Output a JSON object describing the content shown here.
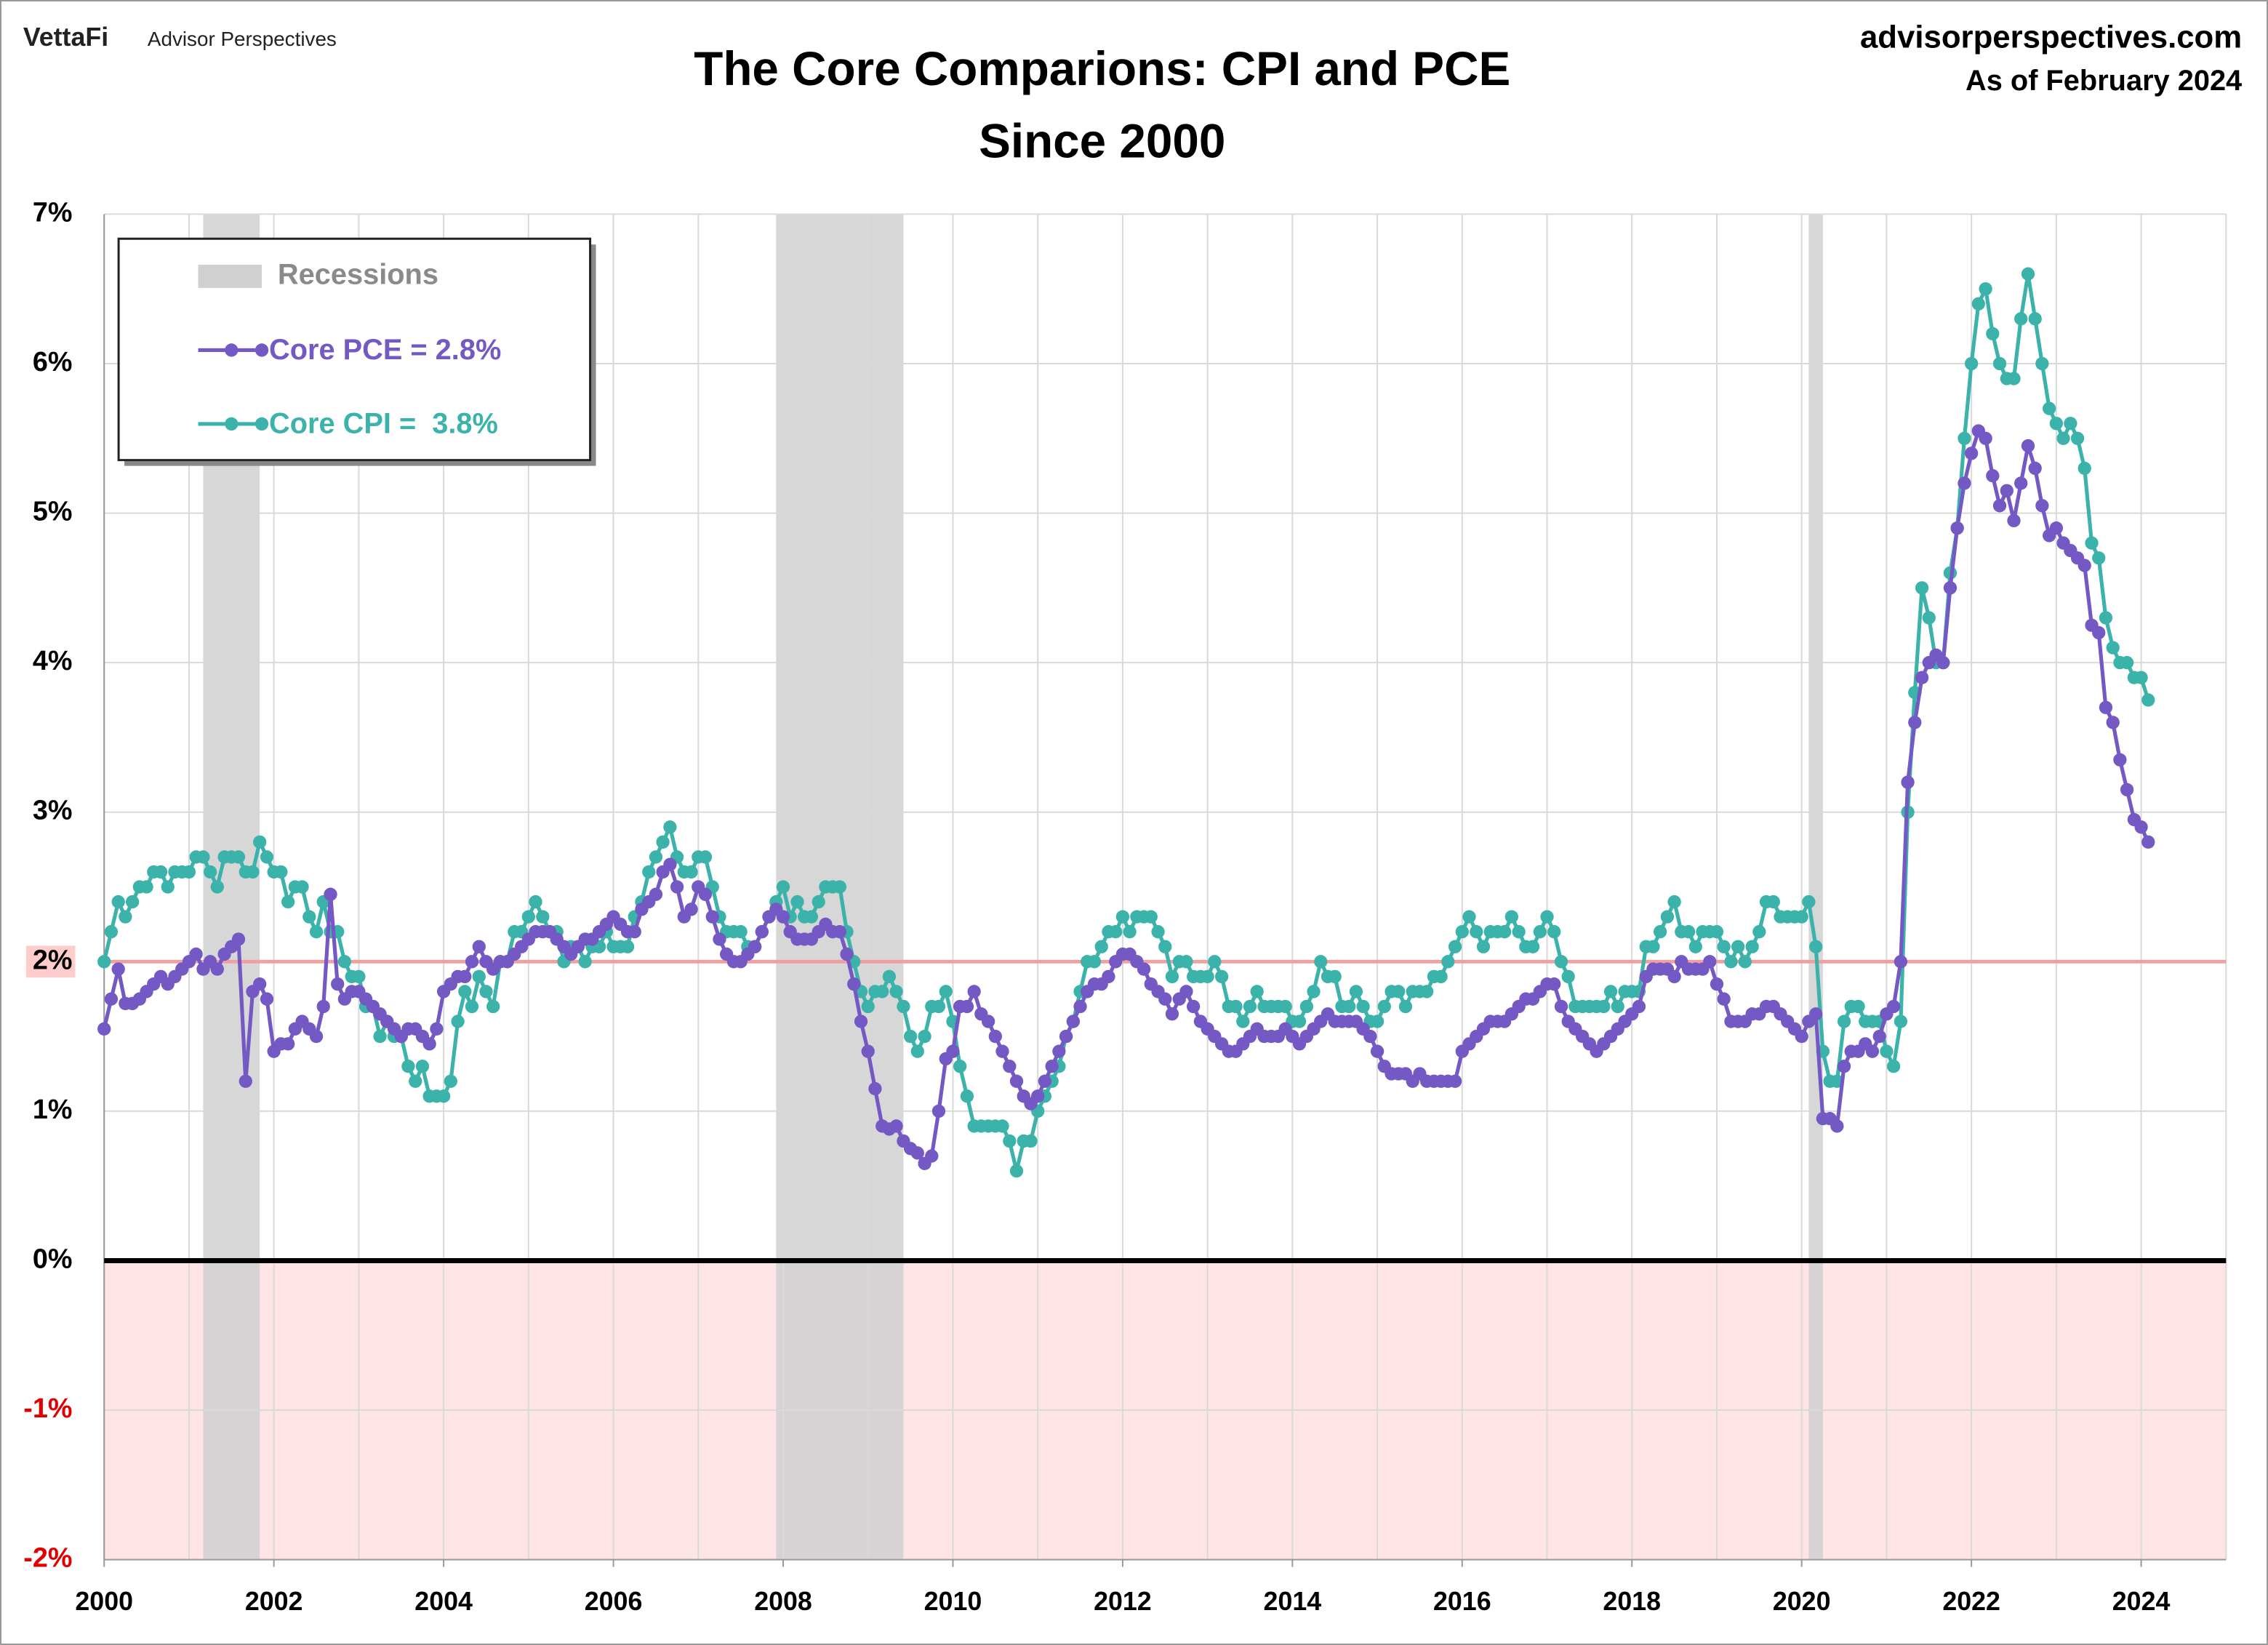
{
  "chart_data": {
    "type": "line",
    "brand": "VettaFi",
    "brand_sub": "Advisor Perspectives",
    "title": "The Core Comparions: CPI and PCE",
    "subtitle": "Since 2000",
    "source": "advisorperspectives.com",
    "date_note": "As of February 2024",
    "xlim": [
      2000,
      2025
    ],
    "xticks": [
      2000,
      2002,
      2004,
      2006,
      2008,
      2010,
      2012,
      2014,
      2016,
      2018,
      2020,
      2022,
      2024
    ],
    "xgrid": [
      2000,
      2001,
      2002,
      2003,
      2004,
      2005,
      2006,
      2007,
      2008,
      2009,
      2010,
      2011,
      2012,
      2013,
      2014,
      2015,
      2016,
      2017,
      2018,
      2019,
      2020,
      2021,
      2022,
      2023,
      2024,
      2025
    ],
    "ylim": [
      -2,
      7
    ],
    "yticks": [
      {
        "value": -2,
        "label": "-2%"
      },
      {
        "value": -1,
        "label": "-1%"
      },
      {
        "value": 0,
        "label": "0%"
      },
      {
        "value": 1,
        "label": "1%"
      },
      {
        "value": 2,
        "label": "2%"
      },
      {
        "value": 3,
        "label": "3%"
      },
      {
        "value": 4,
        "label": "4%"
      },
      {
        "value": 5,
        "label": "5%"
      },
      {
        "value": 6,
        "label": "6%"
      },
      {
        "value": 7,
        "label": "7%"
      }
    ],
    "grid": true,
    "negative_label_color": "#e00000",
    "negative_shading": "#ffe4e6",
    "target_line": {
      "value": 2,
      "color": "#f0a0a0"
    },
    "recessions": {
      "name": "Recessions",
      "color": "#d0d0d0",
      "ranges": [
        [
          2001.167,
          2001.833
        ],
        [
          2007.917,
          2009.417
        ],
        [
          2020.083,
          2020.25
        ]
      ]
    },
    "legend": "upper left",
    "x": [
      2000.0,
      2000.083,
      2000.167,
      2000.25,
      2000.333,
      2000.417,
      2000.5,
      2000.583,
      2000.667,
      2000.75,
      2000.833,
      2000.917,
      2001.0,
      2001.083,
      2001.167,
      2001.25,
      2001.333,
      2001.417,
      2001.5,
      2001.583,
      2001.667,
      2001.75,
      2001.833,
      2001.917,
      2002.0,
      2002.083,
      2002.167,
      2002.25,
      2002.333,
      2002.417,
      2002.5,
      2002.583,
      2002.667,
      2002.75,
      2002.833,
      2002.917,
      2003.0,
      2003.083,
      2003.167,
      2003.25,
      2003.333,
      2003.417,
      2003.5,
      2003.583,
      2003.667,
      2003.75,
      2003.833,
      2003.917,
      2004.0,
      2004.083,
      2004.167,
      2004.25,
      2004.333,
      2004.417,
      2004.5,
      2004.583,
      2004.667,
      2004.75,
      2004.833,
      2004.917,
      2005.0,
      2005.083,
      2005.167,
      2005.25,
      2005.333,
      2005.417,
      2005.5,
      2005.583,
      2005.667,
      2005.75,
      2005.833,
      2005.917,
      2006.0,
      2006.083,
      2006.167,
      2006.25,
      2006.333,
      2006.417,
      2006.5,
      2006.583,
      2006.667,
      2006.75,
      2006.833,
      2006.917,
      2007.0,
      2007.083,
      2007.167,
      2007.25,
      2007.333,
      2007.417,
      2007.5,
      2007.583,
      2007.667,
      2007.75,
      2007.833,
      2007.917,
      2008.0,
      2008.083,
      2008.167,
      2008.25,
      2008.333,
      2008.417,
      2008.5,
      2008.583,
      2008.667,
      2008.75,
      2008.833,
      2008.917,
      2009.0,
      2009.083,
      2009.167,
      2009.25,
      2009.333,
      2009.417,
      2009.5,
      2009.583,
      2009.667,
      2009.75,
      2009.833,
      2009.917,
      2010.0,
      2010.083,
      2010.167,
      2010.25,
      2010.333,
      2010.417,
      2010.5,
      2010.583,
      2010.667,
      2010.75,
      2010.833,
      2010.917,
      2011.0,
      2011.083,
      2011.167,
      2011.25,
      2011.333,
      2011.417,
      2011.5,
      2011.583,
      2011.667,
      2011.75,
      2011.833,
      2011.917,
      2012.0,
      2012.083,
      2012.167,
      2012.25,
      2012.333,
      2012.417,
      2012.5,
      2012.583,
      2012.667,
      2012.75,
      2012.833,
      2012.917,
      2013.0,
      2013.083,
      2013.167,
      2013.25,
      2013.333,
      2013.417,
      2013.5,
      2013.583,
      2013.667,
      2013.75,
      2013.833,
      2013.917,
      2014.0,
      2014.083,
      2014.167,
      2014.25,
      2014.333,
      2014.417,
      2014.5,
      2014.583,
      2014.667,
      2014.75,
      2014.833,
      2014.917,
      2015.0,
      2015.083,
      2015.167,
      2015.25,
      2015.333,
      2015.417,
      2015.5,
      2015.583,
      2015.667,
      2015.75,
      2015.833,
      2015.917,
      2016.0,
      2016.083,
      2016.167,
      2016.25,
      2016.333,
      2016.417,
      2016.5,
      2016.583,
      2016.667,
      2016.75,
      2016.833,
      2016.917,
      2017.0,
      2017.083,
      2017.167,
      2017.25,
      2017.333,
      2017.417,
      2017.5,
      2017.583,
      2017.667,
      2017.75,
      2017.833,
      2017.917,
      2018.0,
      2018.083,
      2018.167,
      2018.25,
      2018.333,
      2018.417,
      2018.5,
      2018.583,
      2018.667,
      2018.75,
      2018.833,
      2018.917,
      2019.0,
      2019.083,
      2019.167,
      2019.25,
      2019.333,
      2019.417,
      2019.5,
      2019.583,
      2019.667,
      2019.75,
      2019.833,
      2019.917,
      2020.0,
      2020.083,
      2020.167,
      2020.25,
      2020.333,
      2020.417,
      2020.5,
      2020.583,
      2020.667,
      2020.75,
      2020.833,
      2020.917,
      2021.0,
      2021.083,
      2021.167,
      2021.25,
      2021.333,
      2021.417,
      2021.5,
      2021.583,
      2021.667,
      2021.75,
      2021.833,
      2021.917,
      2022.0,
      2022.083,
      2022.167,
      2022.25,
      2022.333,
      2022.417,
      2022.5,
      2022.583,
      2022.667,
      2022.75,
      2022.833,
      2022.917,
      2023.0,
      2023.083,
      2023.167,
      2023.25,
      2023.333,
      2023.417,
      2023.5,
      2023.583,
      2023.667,
      2023.75,
      2023.833,
      2023.917,
      2024.0,
      2024.083
    ],
    "series": [
      {
        "name": "Core CPI =  3.8%",
        "color": "#3bb3aa",
        "values": [
          2.0,
          2.2,
          2.4,
          2.3,
          2.4,
          2.5,
          2.5,
          2.6,
          2.6,
          2.5,
          2.6,
          2.6,
          2.6,
          2.7,
          2.7,
          2.6,
          2.5,
          2.7,
          2.7,
          2.7,
          2.6,
          2.6,
          2.8,
          2.7,
          2.6,
          2.6,
          2.4,
          2.5,
          2.5,
          2.3,
          2.2,
          2.4,
          2.2,
          2.2,
          2.0,
          1.9,
          1.9,
          1.7,
          1.7,
          1.5,
          1.6,
          1.5,
          1.5,
          1.3,
          1.2,
          1.3,
          1.1,
          1.1,
          1.1,
          1.2,
          1.6,
          1.8,
          1.7,
          1.9,
          1.8,
          1.7,
          2.0,
          2.0,
          2.2,
          2.2,
          2.3,
          2.4,
          2.3,
          2.2,
          2.2,
          2.0,
          2.1,
          2.1,
          2.0,
          2.1,
          2.1,
          2.2,
          2.1,
          2.1,
          2.1,
          2.3,
          2.4,
          2.6,
          2.7,
          2.8,
          2.9,
          2.7,
          2.6,
          2.6,
          2.7,
          2.7,
          2.5,
          2.3,
          2.2,
          2.2,
          2.2,
          2.1,
          2.1,
          2.2,
          2.3,
          2.4,
          2.5,
          2.3,
          2.4,
          2.3,
          2.3,
          2.4,
          2.5,
          2.5,
          2.5,
          2.2,
          2.0,
          1.8,
          1.7,
          1.8,
          1.8,
          1.9,
          1.8,
          1.7,
          1.5,
          1.4,
          1.5,
          1.7,
          1.7,
          1.8,
          1.6,
          1.3,
          1.1,
          0.9,
          0.9,
          0.9,
          0.9,
          0.9,
          0.8,
          0.6,
          0.8,
          0.8,
          1.0,
          1.1,
          1.2,
          1.3,
          1.5,
          1.6,
          1.8,
          2.0,
          2.0,
          2.1,
          2.2,
          2.2,
          2.3,
          2.2,
          2.3,
          2.3,
          2.3,
          2.2,
          2.1,
          1.9,
          2.0,
          2.0,
          1.9,
          1.9,
          1.9,
          2.0,
          1.9,
          1.7,
          1.7,
          1.6,
          1.7,
          1.8,
          1.7,
          1.7,
          1.7,
          1.7,
          1.6,
          1.6,
          1.7,
          1.8,
          2.0,
          1.9,
          1.9,
          1.7,
          1.7,
          1.8,
          1.7,
          1.6,
          1.6,
          1.7,
          1.8,
          1.8,
          1.7,
          1.8,
          1.8,
          1.8,
          1.9,
          1.9,
          2.0,
          2.1,
          2.2,
          2.3,
          2.2,
          2.1,
          2.2,
          2.2,
          2.2,
          2.3,
          2.2,
          2.1,
          2.1,
          2.2,
          2.3,
          2.2,
          2.0,
          1.9,
          1.7,
          1.7,
          1.7,
          1.7,
          1.7,
          1.8,
          1.7,
          1.8,
          1.8,
          1.8,
          2.1,
          2.1,
          2.2,
          2.3,
          2.4,
          2.2,
          2.2,
          2.1,
          2.2,
          2.2,
          2.2,
          2.1,
          2.0,
          2.1,
          2.0,
          2.1,
          2.2,
          2.4,
          2.4,
          2.3,
          2.3,
          2.3,
          2.3,
          2.4,
          2.1,
          1.4,
          1.2,
          1.2,
          1.6,
          1.7,
          1.7,
          1.6,
          1.6,
          1.6,
          1.4,
          1.3,
          1.6,
          3.0,
          3.8,
          4.5,
          4.3,
          4.0,
          4.0,
          4.6,
          4.9,
          5.5,
          6.0,
          6.4,
          6.5,
          6.2,
          6.0,
          5.9,
          5.9,
          6.3,
          6.6,
          6.3,
          6.0,
          5.7,
          5.6,
          5.5,
          5.6,
          5.5,
          5.3,
          4.8,
          4.7,
          4.3,
          4.1,
          4.0,
          4.0,
          3.9,
          3.9,
          3.75
        ]
      },
      {
        "name": "Core PCE = 2.8%",
        "color": "#7458c4",
        "values": [
          1.55,
          1.75,
          1.95,
          1.72,
          1.72,
          1.75,
          1.8,
          1.85,
          1.9,
          1.85,
          1.9,
          1.95,
          2.0,
          2.05,
          1.95,
          2.0,
          1.95,
          2.05,
          2.1,
          2.15,
          1.2,
          1.8,
          1.85,
          1.75,
          1.4,
          1.45,
          1.45,
          1.55,
          1.6,
          1.55,
          1.5,
          1.7,
          2.45,
          1.85,
          1.75,
          1.8,
          1.8,
          1.75,
          1.7,
          1.65,
          1.6,
          1.55,
          1.5,
          1.55,
          1.55,
          1.5,
          1.45,
          1.55,
          1.8,
          1.85,
          1.9,
          1.9,
          2.0,
          2.1,
          2.0,
          1.95,
          2.0,
          2.0,
          2.05,
          2.1,
          2.15,
          2.2,
          2.2,
          2.2,
          2.15,
          2.1,
          2.05,
          2.1,
          2.15,
          2.15,
          2.2,
          2.25,
          2.3,
          2.25,
          2.2,
          2.2,
          2.35,
          2.4,
          2.45,
          2.6,
          2.65,
          2.5,
          2.3,
          2.35,
          2.5,
          2.45,
          2.3,
          2.15,
          2.05,
          2.0,
          2.0,
          2.05,
          2.1,
          2.2,
          2.3,
          2.35,
          2.3,
          2.2,
          2.15,
          2.15,
          2.15,
          2.2,
          2.25,
          2.2,
          2.2,
          2.05,
          1.85,
          1.6,
          1.4,
          1.15,
          0.9,
          0.88,
          0.9,
          0.8,
          0.75,
          0.72,
          0.65,
          0.7,
          1.0,
          1.35,
          1.4,
          1.7,
          1.7,
          1.8,
          1.65,
          1.6,
          1.5,
          1.4,
          1.3,
          1.2,
          1.1,
          1.05,
          1.1,
          1.2,
          1.3,
          1.4,
          1.5,
          1.6,
          1.7,
          1.8,
          1.85,
          1.85,
          1.9,
          2.0,
          2.05,
          2.05,
          2.0,
          1.95,
          1.85,
          1.8,
          1.75,
          1.65,
          1.75,
          1.8,
          1.7,
          1.6,
          1.55,
          1.5,
          1.45,
          1.4,
          1.4,
          1.45,
          1.5,
          1.55,
          1.5,
          1.5,
          1.5,
          1.55,
          1.5,
          1.45,
          1.5,
          1.55,
          1.6,
          1.65,
          1.6,
          1.6,
          1.6,
          1.6,
          1.55,
          1.5,
          1.4,
          1.3,
          1.25,
          1.25,
          1.25,
          1.2,
          1.25,
          1.2,
          1.2,
          1.2,
          1.2,
          1.2,
          1.4,
          1.45,
          1.5,
          1.55,
          1.6,
          1.6,
          1.6,
          1.65,
          1.7,
          1.75,
          1.75,
          1.8,
          1.85,
          1.85,
          1.7,
          1.6,
          1.55,
          1.5,
          1.45,
          1.4,
          1.45,
          1.5,
          1.55,
          1.6,
          1.65,
          1.7,
          1.9,
          1.95,
          1.95,
          1.95,
          1.9,
          2.0,
          1.95,
          1.95,
          1.95,
          2.0,
          1.85,
          1.75,
          1.6,
          1.6,
          1.6,
          1.65,
          1.65,
          1.7,
          1.7,
          1.65,
          1.6,
          1.55,
          1.5,
          1.6,
          1.65,
          0.95,
          0.95,
          0.9,
          1.3,
          1.4,
          1.4,
          1.45,
          1.4,
          1.5,
          1.65,
          1.7,
          2.0,
          3.2,
          3.6,
          3.9,
          4.0,
          4.05,
          4.0,
          4.5,
          4.9,
          5.2,
          5.4,
          5.55,
          5.5,
          5.25,
          5.05,
          5.15,
          4.95,
          5.2,
          5.45,
          5.3,
          5.05,
          4.85,
          4.9,
          4.8,
          4.75,
          4.7,
          4.65,
          4.25,
          4.2,
          3.7,
          3.6,
          3.35,
          3.15,
          2.95,
          2.9,
          2.8
        ]
      }
    ]
  }
}
